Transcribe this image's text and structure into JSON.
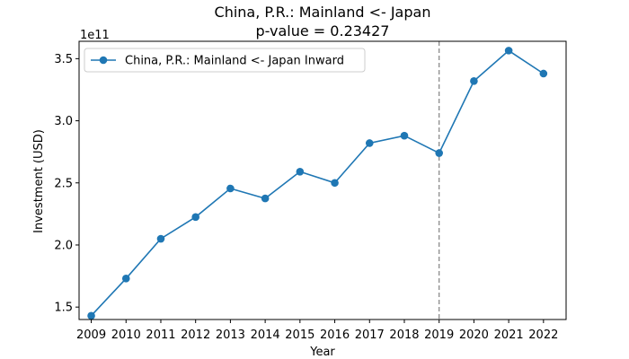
{
  "chart_data": {
    "type": "line",
    "title": "China, P.R.: Mainland <- Japan",
    "subtitle": "p-value = 0.23427",
    "xlabel": "Year",
    "ylabel": "Investment (USD)",
    "y_offset_label": "1e11",
    "x": [
      2009,
      2010,
      2011,
      2012,
      2013,
      2014,
      2015,
      2016,
      2017,
      2018,
      2019,
      2020,
      2021,
      2022
    ],
    "series": [
      {
        "name": "China, P.R.: Mainland <- Japan Inward",
        "values": [
          1.43,
          1.73,
          2.05,
          2.225,
          2.455,
          2.375,
          2.59,
          2.5,
          2.82,
          2.88,
          2.74,
          3.32,
          3.565,
          3.38
        ],
        "color": "#1f77b4"
      }
    ],
    "xlim": [
      2008.65,
      2022.65
    ],
    "ylim": [
      1.4,
      3.64
    ],
    "yticks": [
      1.5,
      2.0,
      2.5,
      3.0,
      3.5
    ],
    "ytick_labels": [
      "1.5",
      "2.0",
      "2.5",
      "3.0",
      "3.5"
    ],
    "vline": {
      "x": 2019,
      "style": "dashed",
      "color": "#808080"
    },
    "legend": "top-left",
    "grid": false
  }
}
